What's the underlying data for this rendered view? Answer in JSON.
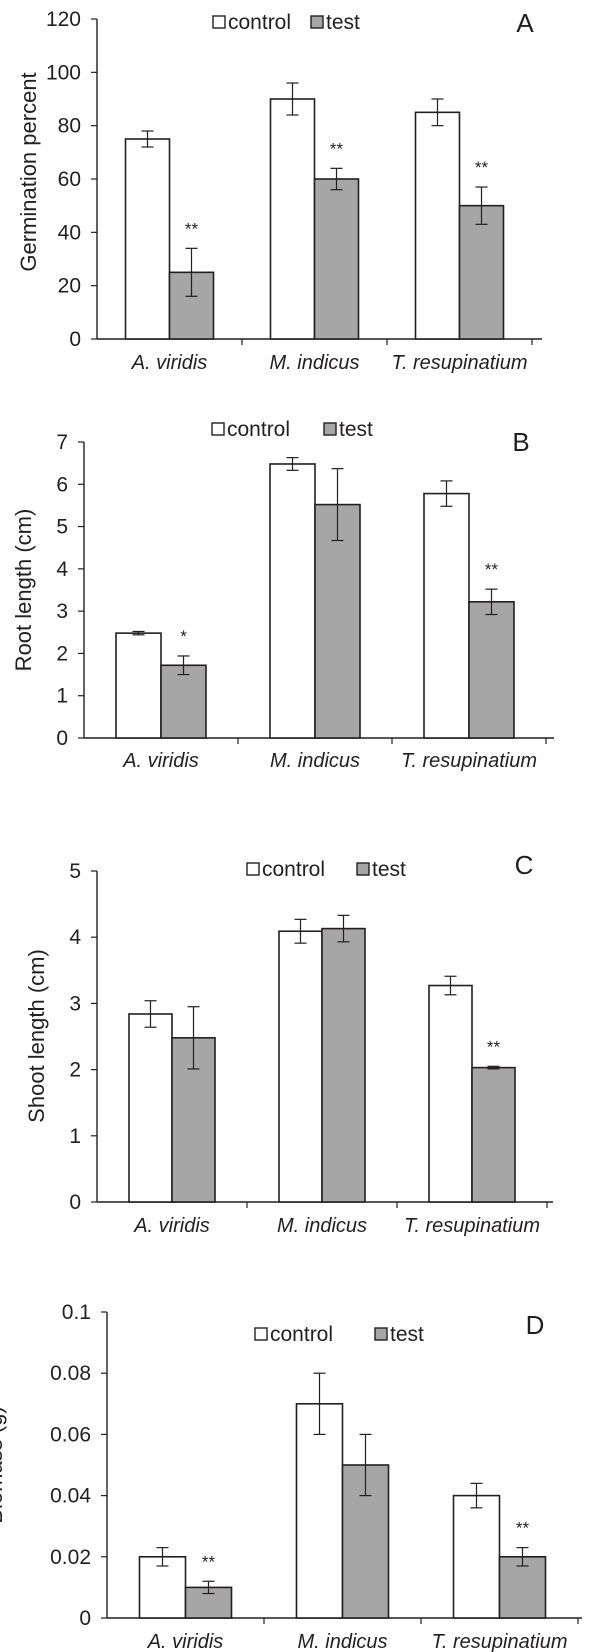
{
  "figure": {
    "legend_control": "control",
    "legend_test": "test",
    "colors": {
      "control": "#ffffff",
      "test": "#a6a6a6",
      "ink": "#231f20"
    }
  },
  "chart_data": [
    {
      "type": "bar",
      "panel_label": "A",
      "title": "",
      "xlabel": "",
      "ylabel": "Germination percent",
      "categories": [
        "A. viridis",
        "M. indicus",
        "T. resupinatium"
      ],
      "ylim": [
        0,
        120
      ],
      "yticks": [
        0,
        20,
        40,
        60,
        80,
        100,
        120
      ],
      "ytick_labels": [
        "0",
        "20",
        "40",
        "60",
        "80",
        "100",
        "120"
      ],
      "legend_position": "top-center",
      "grid": false,
      "series": [
        {
          "name": "control",
          "values": [
            75,
            90,
            85
          ],
          "errors": [
            3,
            6,
            5
          ]
        },
        {
          "name": "test",
          "values": [
            25,
            60,
            50
          ],
          "errors": [
            9,
            4,
            7
          ]
        }
      ],
      "significance": [
        "**",
        "**",
        "**"
      ]
    },
    {
      "type": "bar",
      "panel_label": "B",
      "title": "",
      "xlabel": "",
      "ylabel": "Root length (cm)",
      "categories": [
        "A. viridis",
        "M. indicus",
        "T. resupinatium"
      ],
      "ylim": [
        0,
        7
      ],
      "yticks": [
        0,
        1,
        2,
        3,
        4,
        5,
        6,
        7
      ],
      "ytick_labels": [
        "0",
        "1",
        "2",
        "3",
        "4",
        "5",
        "6",
        "7"
      ],
      "legend_position": "top-center",
      "grid": false,
      "series": [
        {
          "name": "control",
          "values": [
            2.48,
            6.48,
            5.78
          ],
          "errors": [
            0.04,
            0.15,
            0.3
          ]
        },
        {
          "name": "test",
          "values": [
            1.72,
            5.52,
            3.22
          ],
          "errors": [
            0.22,
            0.85,
            0.3
          ]
        }
      ],
      "significance": [
        "*",
        "",
        "**"
      ]
    },
    {
      "type": "bar",
      "panel_label": "C",
      "title": "",
      "xlabel": "",
      "ylabel": "Shoot length (cm)",
      "categories": [
        "A. viridis",
        "M. indicus",
        "T. resupinatium"
      ],
      "ylim": [
        0,
        5
      ],
      "yticks": [
        0,
        1,
        2,
        3,
        4,
        5
      ],
      "ytick_labels": [
        "0",
        "1",
        "2",
        "3",
        "4",
        "5"
      ],
      "legend_position": "top-center",
      "grid": false,
      "series": [
        {
          "name": "control",
          "values": [
            2.84,
            4.09,
            3.27
          ],
          "errors": [
            0.2,
            0.18,
            0.14
          ]
        },
        {
          "name": "test",
          "values": [
            2.48,
            4.13,
            2.03
          ],
          "errors": [
            0.47,
            0.2,
            0.02
          ]
        }
      ],
      "significance": [
        "",
        "",
        "**"
      ]
    },
    {
      "type": "bar",
      "panel_label": "D",
      "title": "",
      "xlabel": "",
      "ylabel": "Biomass (g)",
      "categories": [
        "A. viridis",
        "M. indicus",
        "T. resupinatium"
      ],
      "ylim": [
        0,
        0.1
      ],
      "yticks": [
        0,
        0.02,
        0.04,
        0.06,
        0.08,
        0.1
      ],
      "ytick_labels": [
        "0",
        "0.02",
        "0.04",
        "0.06",
        "0.08",
        "0.1"
      ],
      "legend_position": "top-center",
      "grid": false,
      "series": [
        {
          "name": "control",
          "values": [
            0.02,
            0.07,
            0.04
          ],
          "errors": [
            0.003,
            0.01,
            0.004
          ]
        },
        {
          "name": "test",
          "values": [
            0.01,
            0.05,
            0.02
          ],
          "errors": [
            0.002,
            0.01,
            0.003
          ]
        }
      ],
      "significance": [
        "**",
        "",
        "**"
      ]
    }
  ]
}
